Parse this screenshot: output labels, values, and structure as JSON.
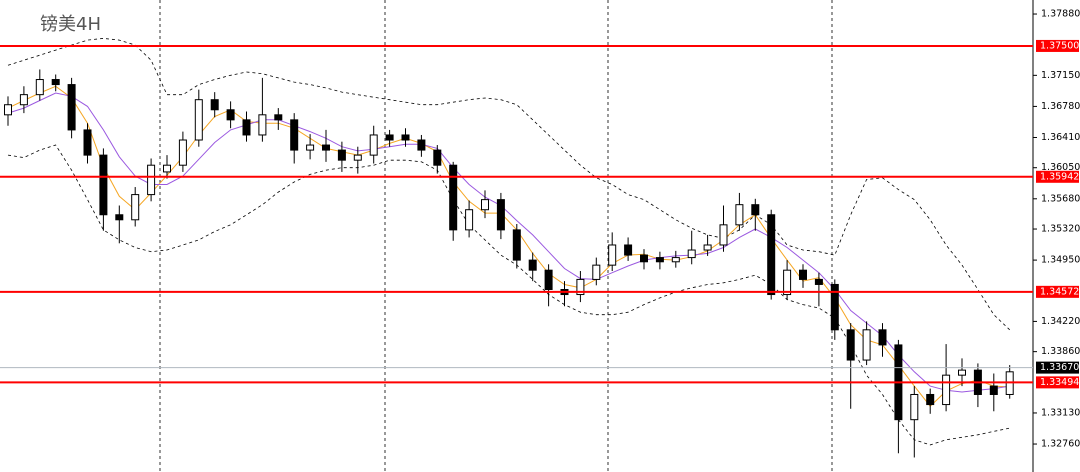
{
  "chart_data": {
    "type": "candlestick",
    "title": "镑美4H",
    "ylim": [
      1.32427,
      1.38047
    ],
    "yticks": [
      {
        "value": 1.3788,
        "label": "1.37880"
      },
      {
        "value": 1.3715,
        "label": "1.37150"
      },
      {
        "value": 1.3678,
        "label": "1.36780"
      },
      {
        "value": 1.3641,
        "label": "1.36410"
      },
      {
        "value": 1.3605,
        "label": "1.36050"
      },
      {
        "value": 1.3568,
        "label": "1.35680"
      },
      {
        "value": 1.3532,
        "label": "1.35320"
      },
      {
        "value": 1.3495,
        "label": "1.34950"
      },
      {
        "value": 1.3422,
        "label": "1.34220"
      },
      {
        "value": 1.3386,
        "label": "1.33860"
      },
      {
        "value": 1.3313,
        "label": "1.33130"
      },
      {
        "value": 1.3276,
        "label": "1.32760"
      }
    ],
    "levels": {
      "color": "#ff0000",
      "values": [
        {
          "value": 1.375,
          "label": "1.37500"
        },
        {
          "value": 1.35942,
          "label": "1.35942"
        },
        {
          "value": 1.34572,
          "label": "1.34572"
        },
        {
          "value": 1.33494,
          "label": "1.33494"
        }
      ]
    },
    "current_price": {
      "value": 1.3367,
      "label": "1.33670"
    },
    "candles": {
      "open": [
        1.3668,
        1.368,
        1.3692,
        1.371,
        1.3704,
        1.365,
        1.362,
        1.3549,
        1.3543,
        1.3573,
        1.36,
        1.3608,
        1.3638,
        1.3686,
        1.3674,
        1.3662,
        1.3644,
        1.3668,
        1.3662,
        1.3626,
        1.3632,
        1.3626,
        1.3614,
        1.362,
        1.3644,
        1.3644,
        1.3638,
        1.3626,
        1.3608,
        1.3531,
        1.3555,
        1.3567,
        1.3531,
        1.3495,
        1.3483,
        1.346,
        1.3454,
        1.3472,
        1.3489,
        1.3513,
        1.3501,
        1.3498,
        1.3493,
        1.3498,
        1.3507,
        1.3513,
        1.3537,
        1.3561,
        1.3549,
        1.3454,
        1.3483,
        1.3472,
        1.3466,
        1.3412,
        1.3376,
        1.3412,
        1.3394,
        1.3305,
        1.3335,
        1.3323,
        1.3358,
        1.3364,
        1.3345,
        1.3335
      ],
      "high": [
        1.369,
        1.3702,
        1.3722,
        1.3716,
        1.3712,
        1.3658,
        1.3628,
        1.356,
        1.3582,
        1.3616,
        1.362,
        1.3648,
        1.3698,
        1.3695,
        1.3684,
        1.3672,
        1.3712,
        1.3676,
        1.367,
        1.3645,
        1.365,
        1.3636,
        1.363,
        1.3655,
        1.365,
        1.3652,
        1.3644,
        1.3632,
        1.3612,
        1.3566,
        1.3578,
        1.3575,
        1.3538,
        1.3504,
        1.349,
        1.347,
        1.3482,
        1.3498,
        1.3528,
        1.3522,
        1.3508,
        1.3505,
        1.3506,
        1.353,
        1.3525,
        1.356,
        1.3575,
        1.3568,
        1.3555,
        1.3495,
        1.349,
        1.348,
        1.3472,
        1.342,
        1.3422,
        1.342,
        1.34,
        1.3345,
        1.3342,
        1.3395,
        1.3378,
        1.3372,
        1.336,
        1.337
      ],
      "low": [
        1.3655,
        1.367,
        1.3685,
        1.3696,
        1.364,
        1.361,
        1.353,
        1.3515,
        1.3535,
        1.3565,
        1.3592,
        1.36,
        1.363,
        1.3665,
        1.3652,
        1.3636,
        1.3636,
        1.365,
        1.361,
        1.3615,
        1.3612,
        1.36,
        1.3598,
        1.361,
        1.363,
        1.363,
        1.3618,
        1.3598,
        1.3518,
        1.3522,
        1.3545,
        1.352,
        1.3485,
        1.347,
        1.344,
        1.344,
        1.3445,
        1.3465,
        1.3482,
        1.3494,
        1.3484,
        1.3484,
        1.3486,
        1.349,
        1.35,
        1.3505,
        1.353,
        1.353,
        1.3448,
        1.3448,
        1.3462,
        1.344,
        1.34,
        1.3318,
        1.337,
        1.338,
        1.3265,
        1.326,
        1.3312,
        1.3315,
        1.3345,
        1.332,
        1.3315,
        1.333
      ],
      "close": [
        1.368,
        1.3692,
        1.371,
        1.3704,
        1.365,
        1.362,
        1.3549,
        1.3543,
        1.3573,
        1.3608,
        1.3608,
        1.3638,
        1.3686,
        1.3674,
        1.3662,
        1.3644,
        1.3668,
        1.3662,
        1.3626,
        1.3632,
        1.3626,
        1.3614,
        1.362,
        1.3644,
        1.3638,
        1.3638,
        1.3626,
        1.3608,
        1.3531,
        1.3555,
        1.3567,
        1.3531,
        1.3495,
        1.3483,
        1.346,
        1.3454,
        1.3472,
        1.3489,
        1.3513,
        1.3501,
        1.3493,
        1.3493,
        1.3498,
        1.3507,
        1.3513,
        1.3537,
        1.3561,
        1.3549,
        1.3454,
        1.3483,
        1.3472,
        1.3466,
        1.3412,
        1.3376,
        1.3412,
        1.3394,
        1.3305,
        1.3335,
        1.3323,
        1.3358,
        1.3364,
        1.3335,
        1.3335,
        1.3362
      ]
    },
    "bands": {
      "color": "#000000",
      "upper": [
        1.3727,
        1.3733,
        1.3739,
        1.3745,
        1.3751,
        1.3757,
        1.3759,
        1.3757,
        1.3751,
        1.3733,
        1.3692,
        1.3692,
        1.3704,
        1.371,
        1.3715,
        1.3719,
        1.3717,
        1.3712,
        1.3707,
        1.3704,
        1.37,
        1.3695,
        1.3692,
        1.3689,
        1.3686,
        1.3683,
        1.368,
        1.368,
        1.3683,
        1.3686,
        1.3688,
        1.3686,
        1.368,
        1.3662,
        1.3644,
        1.3626,
        1.3608,
        1.3593,
        1.3585,
        1.3573,
        1.3567,
        1.3555,
        1.3543,
        1.3533,
        1.3525,
        1.3521,
        1.3531,
        1.3549,
        1.3537,
        1.3513,
        1.3507,
        1.3505,
        1.3501,
        1.3549,
        1.3591,
        1.3593,
        1.3579,
        1.3567,
        1.3543,
        1.3513,
        1.3489,
        1.346,
        1.343,
        1.3412
      ],
      "lower": [
        1.362,
        1.3617,
        1.3626,
        1.3632,
        1.3602,
        1.3567,
        1.3531,
        1.3519,
        1.351,
        1.3505,
        1.3507,
        1.3513,
        1.3519,
        1.3529,
        1.3537,
        1.3549,
        1.3561,
        1.3576,
        1.3588,
        1.3597,
        1.3602,
        1.3605,
        1.3605,
        1.3608,
        1.3614,
        1.3614,
        1.3612,
        1.3602,
        1.3567,
        1.3537,
        1.3519,
        1.3501,
        1.3489,
        1.3472,
        1.3454,
        1.3442,
        1.3433,
        1.343,
        1.343,
        1.3433,
        1.3442,
        1.345,
        1.3457,
        1.3462,
        1.3466,
        1.3468,
        1.3472,
        1.3477,
        1.3466,
        1.3448,
        1.3442,
        1.3438,
        1.3426,
        1.3394,
        1.3358,
        1.3335,
        1.3305,
        1.3281,
        1.3275,
        1.3281,
        1.3284,
        1.3287,
        1.3291,
        1.3295
      ]
    },
    "moving_averages": [
      {
        "color": "#f5a623",
        "values": [
          1.3676,
          1.3685,
          1.3694,
          1.3702,
          1.3688,
          1.3658,
          1.3606,
          1.3571,
          1.3555,
          1.3575,
          1.3596,
          1.3618,
          1.3644,
          1.3666,
          1.3674,
          1.366,
          1.3658,
          1.3658,
          1.3652,
          1.364,
          1.3628,
          1.3624,
          1.362,
          1.3626,
          1.3634,
          1.364,
          1.3634,
          1.3624,
          1.3588,
          1.3565,
          1.3551,
          1.3551,
          1.3531,
          1.3503,
          1.3479,
          1.3466,
          1.3462,
          1.3472,
          1.3491,
          1.3501,
          1.3502,
          1.3496,
          1.3495,
          1.3499,
          1.3506,
          1.3519,
          1.3537,
          1.3549,
          1.3521,
          1.3495,
          1.347,
          1.3474,
          1.345,
          1.3418,
          1.34,
          1.3394,
          1.337,
          1.3345,
          1.3321,
          1.3339,
          1.3348,
          1.3352,
          1.3345,
          1.3344
        ]
      },
      {
        "color": "#9b59e0",
        "values": [
          1.367,
          1.3676,
          1.3685,
          1.3694,
          1.369,
          1.3678,
          1.365,
          1.3618,
          1.3595,
          1.3585,
          1.3585,
          1.3595,
          1.3615,
          1.3635,
          1.365,
          1.3656,
          1.3662,
          1.3662,
          1.3655,
          1.3648,
          1.364,
          1.363,
          1.3625,
          1.3627,
          1.363,
          1.3633,
          1.3633,
          1.3628,
          1.3605,
          1.3585,
          1.357,
          1.356,
          1.3542,
          1.3525,
          1.3505,
          1.3485,
          1.3473,
          1.3472,
          1.348,
          1.3488,
          1.3495,
          1.3498,
          1.35,
          1.3501,
          1.3503,
          1.351,
          1.3522,
          1.3532,
          1.3522,
          1.351,
          1.3495,
          1.348,
          1.346,
          1.3435,
          1.342,
          1.3405,
          1.3382,
          1.3362,
          1.3345,
          1.334,
          1.3338,
          1.334,
          1.3342,
          1.3345
        ]
      }
    ]
  }
}
